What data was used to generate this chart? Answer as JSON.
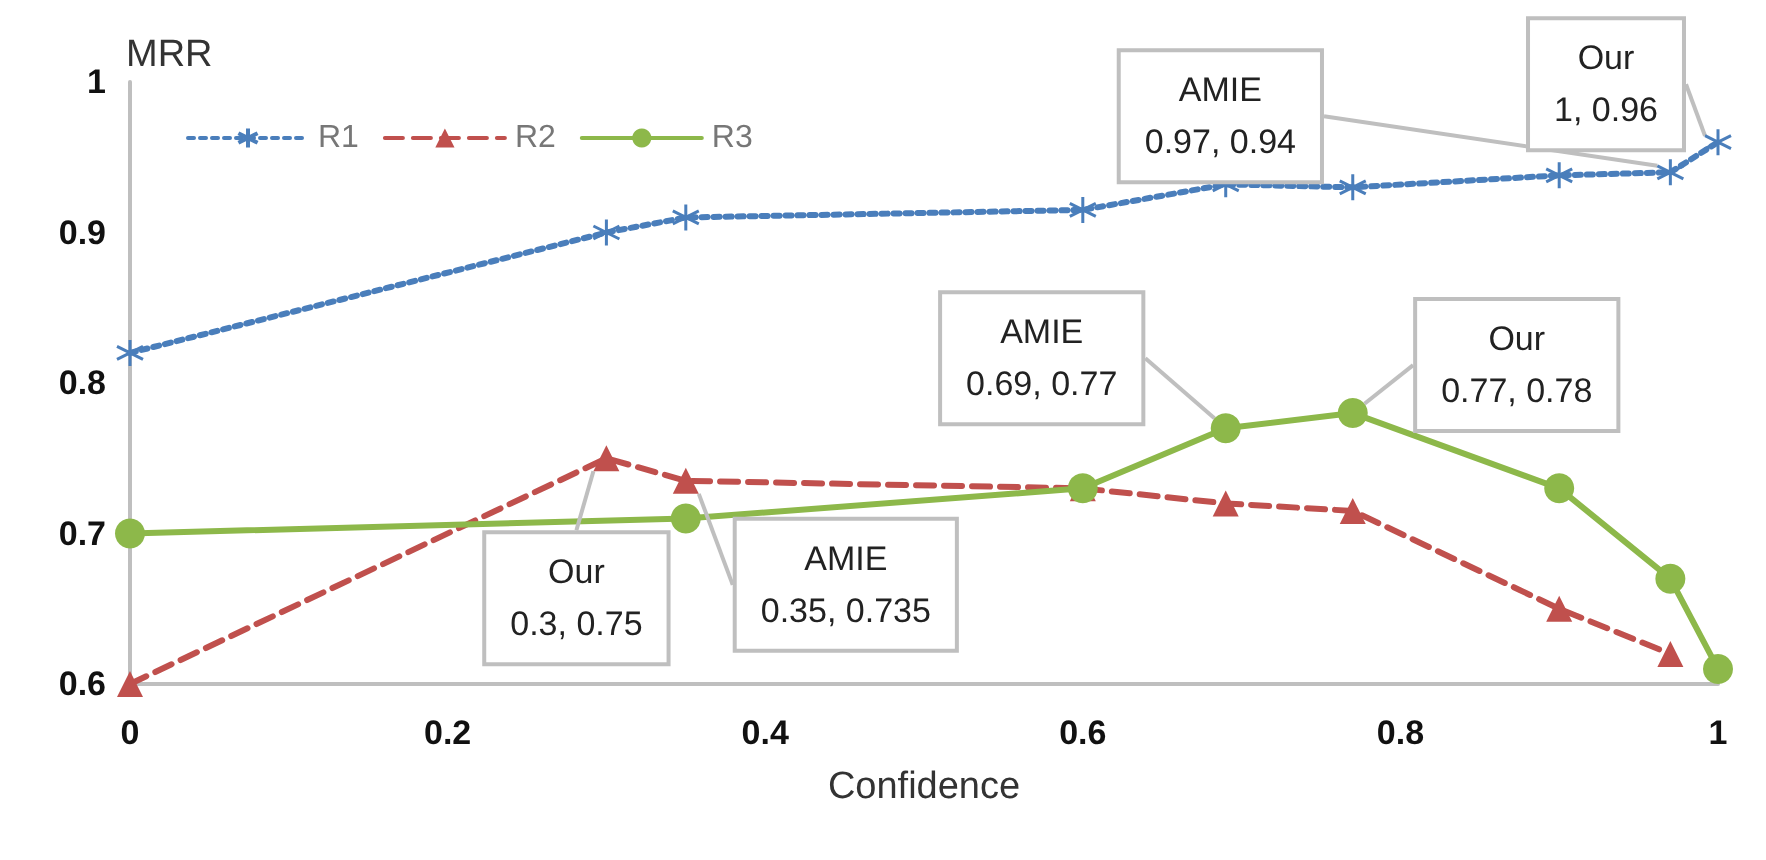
{
  "chart_data": {
    "type": "line",
    "xlabel": "Confidence",
    "ylabel": "MRR",
    "xlim": [
      0,
      1
    ],
    "xticks": [
      0,
      0.2,
      0.4,
      0.6,
      0.8,
      1
    ],
    "ylim": [
      0.6,
      1
    ],
    "yticks": [
      0.6,
      0.7,
      0.8,
      0.9,
      1
    ],
    "grid": false,
    "legend": "top left",
    "series": [
      {
        "name": "R1",
        "color": "#4a7ebb",
        "marker": "cross",
        "line_style": "dotted",
        "x": [
          0,
          0.3,
          0.35,
          0.6,
          0.69,
          0.77,
          0.9,
          0.97,
          1
        ],
        "values": [
          0.82,
          0.9,
          0.91,
          0.915,
          0.932,
          0.93,
          0.938,
          0.94,
          0.96
        ]
      },
      {
        "name": "R2",
        "color": "#c0504d",
        "marker": "triangle",
        "line_style": "dashed",
        "x": [
          0,
          0.3,
          0.35,
          0.6,
          0.69,
          0.77,
          0.9,
          0.97
        ],
        "values": [
          0.6,
          0.75,
          0.735,
          0.73,
          0.72,
          0.715,
          0.65,
          0.62
        ]
      },
      {
        "name": "R3",
        "color": "#8db84a",
        "marker": "circle",
        "line_style": "solid",
        "x": [
          0,
          0.35,
          0.6,
          0.69,
          0.77,
          0.9,
          0.97,
          1
        ],
        "values": [
          0.7,
          0.71,
          0.73,
          0.77,
          0.78,
          0.73,
          0.67,
          0.61
        ]
      }
    ],
    "annotations": [
      {
        "text": "Our\n0.3, 0.75",
        "x": 0.3,
        "y": 0.75
      },
      {
        "text": "AMIE\n0.35, 0.735",
        "x": 0.35,
        "y": 0.735
      },
      {
        "text": "AMIE\n0.69, 0.77",
        "x": 0.69,
        "y": 0.77
      },
      {
        "text": "Our\n0.77, 0.78",
        "x": 0.77,
        "y": 0.78
      },
      {
        "text": "AMIE\n0.97, 0.94",
        "x": 0.97,
        "y": 0.94
      },
      {
        "text": "Our\n1, 0.96",
        "x": 1,
        "y": 0.96
      }
    ]
  }
}
